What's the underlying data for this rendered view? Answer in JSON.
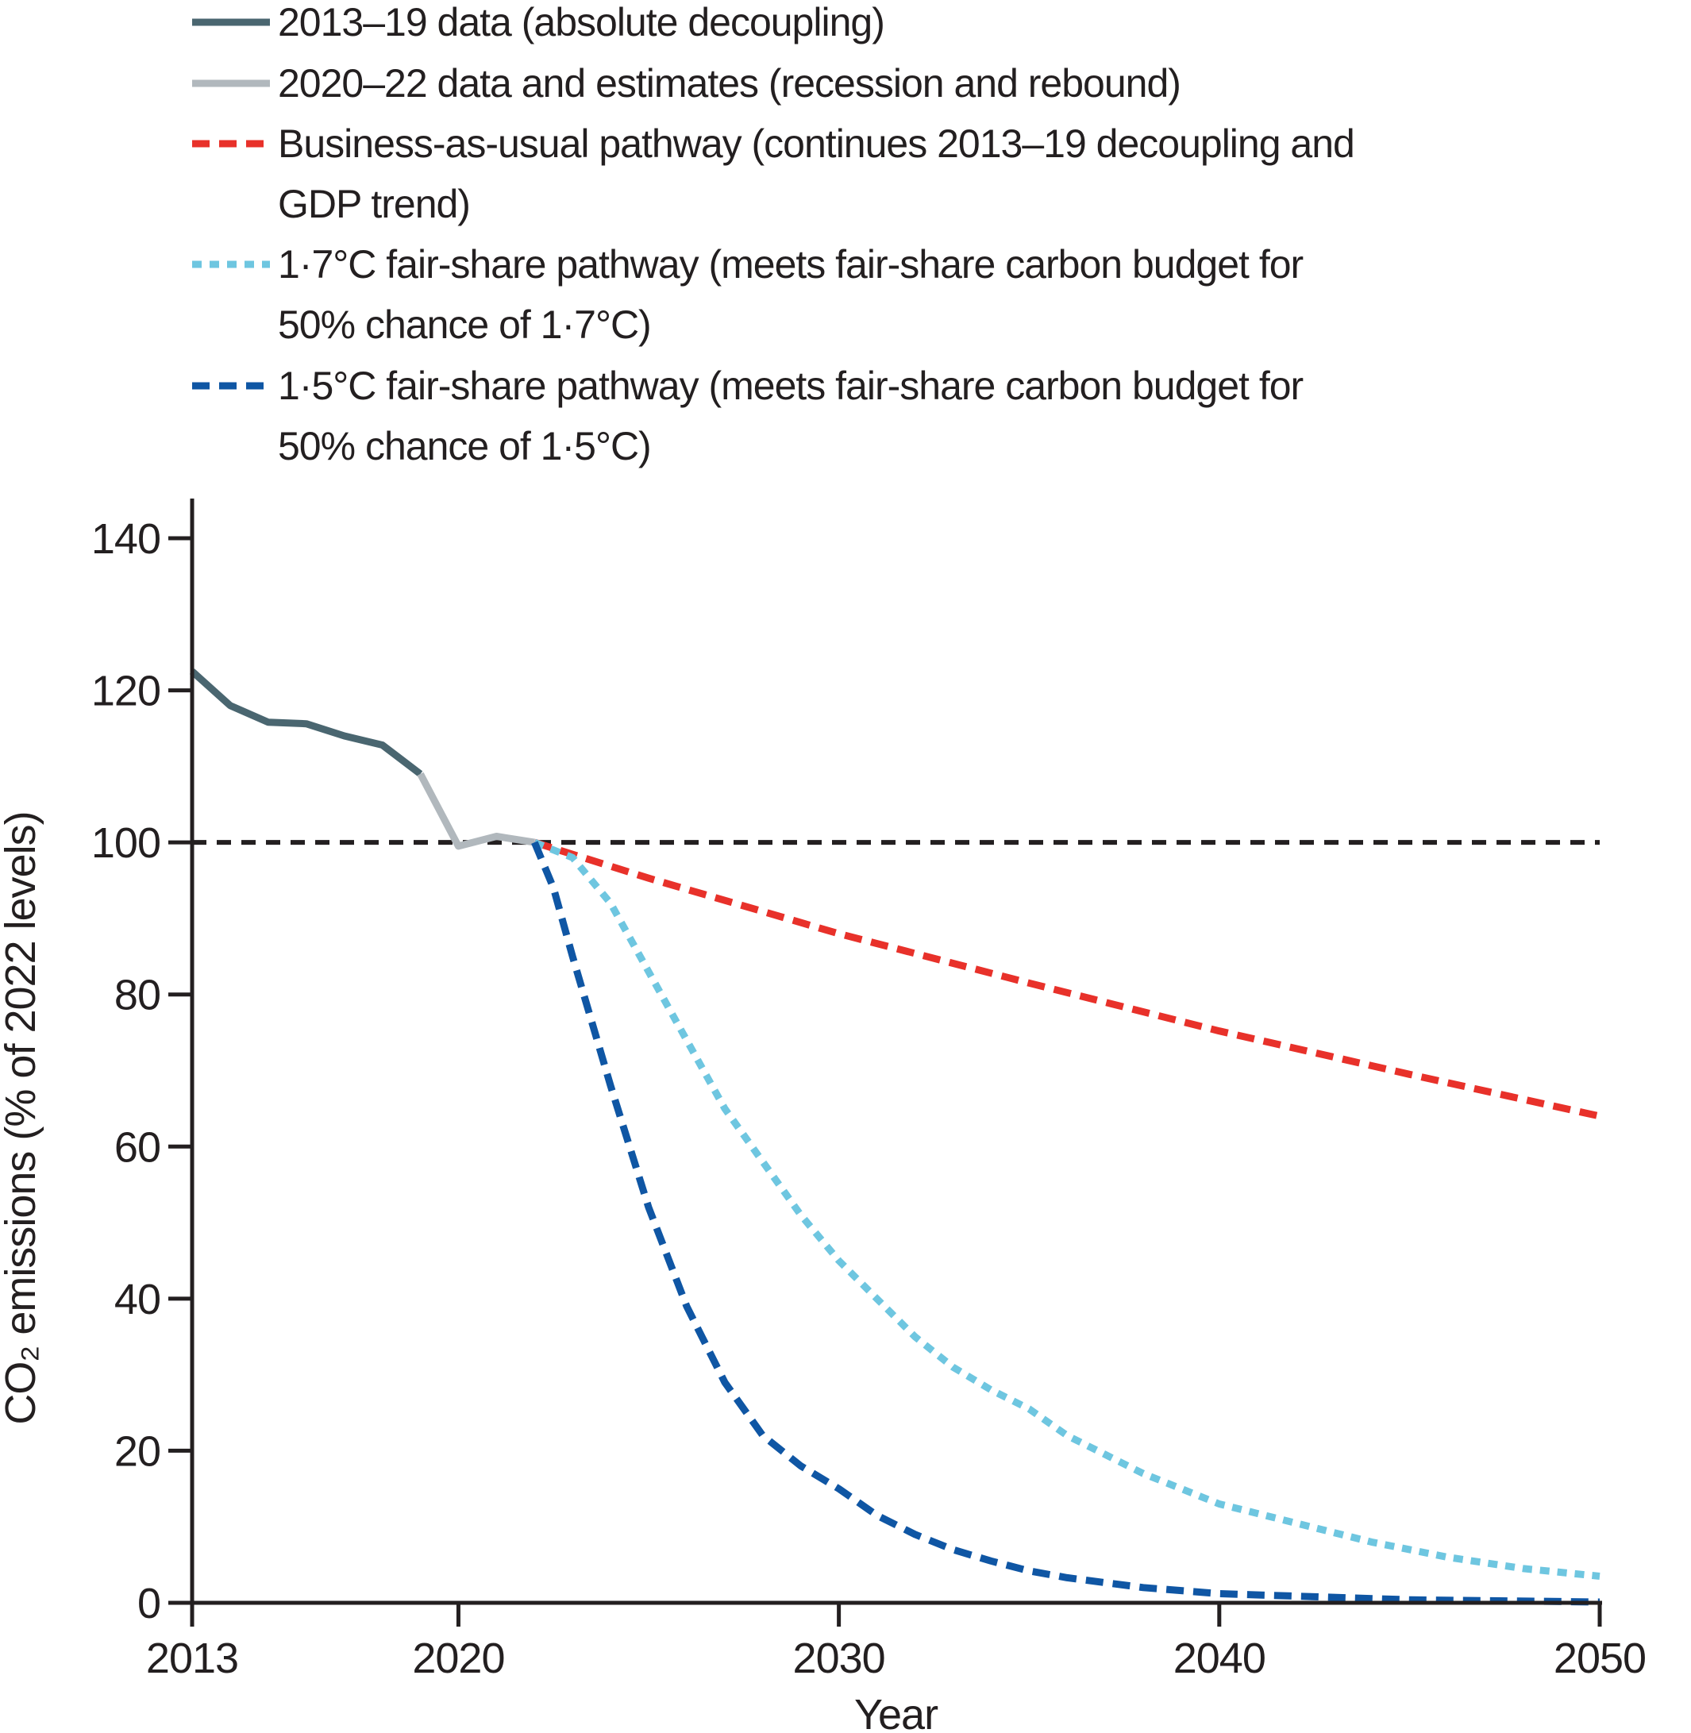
{
  "chart_data": {
    "type": "line",
    "xlabel": "Year",
    "ylabel": "CO₂ emissions (% of 2022 levels)",
    "xlim": [
      2013,
      2050
    ],
    "ylim": [
      0,
      140
    ],
    "xticks": [
      2013,
      2020,
      2030,
      2040,
      2050
    ],
    "yticks": [
      0,
      20,
      40,
      60,
      80,
      100,
      120,
      140
    ],
    "reference_line": {
      "y": 100,
      "color": "#231f20",
      "style": "dashed"
    },
    "legend_position": "top",
    "series": [
      {
        "name": "2013–19 data (absolute decoupling)",
        "label_lines": [
          "2013–19 data (absolute decoupling)"
        ],
        "color": "#4a6670",
        "style": "solid",
        "x": [
          2013,
          2014,
          2015,
          2016,
          2017,
          2018,
          2019
        ],
        "y": [
          122.5,
          118,
          115.8,
          115.6,
          114,
          112.8,
          109
        ]
      },
      {
        "name": "2020–22 data and estimates (recession and rebound)",
        "label_lines": [
          "2020–22 data and estimates (recession and rebound)"
        ],
        "color": "#b1b8bd",
        "style": "solid",
        "x": [
          2019,
          2020,
          2021,
          2022
        ],
        "y": [
          109,
          99.5,
          100.8,
          100
        ]
      },
      {
        "name": "Business-as-usual pathway (continues 2013–19 decoupling and GDP trend)",
        "label_lines": [
          "Business-as-usual pathway (continues 2013–19 decoupling and",
          "GDP trend)"
        ],
        "color": "#e8312a",
        "style": "dashed",
        "x": [
          2022,
          2025,
          2030,
          2035,
          2040,
          2045,
          2050
        ],
        "y": [
          100,
          95.3,
          88,
          81.5,
          75.2,
          69.5,
          64
        ]
      },
      {
        "name": "1·7°C fair-share pathway (meets fair-share carbon budget for 50% chance of 1·7°C)",
        "label_lines": [
          "1·7°C fair-share pathway (meets fair-share carbon budget for",
          "50% chance of 1·7°C)"
        ],
        "color": "#6ec6e0",
        "style": "dotted",
        "x": [
          2022,
          2023,
          2024,
          2025,
          2026,
          2027,
          2028,
          2029,
          2030,
          2031,
          2032,
          2033,
          2034,
          2035,
          2036,
          2037,
          2038,
          2039,
          2040,
          2042,
          2044,
          2046,
          2048,
          2050
        ],
        "y": [
          100,
          98,
          92,
          83,
          74,
          65,
          58,
          51,
          45,
          40,
          35,
          31,
          28,
          25.5,
          22,
          19.5,
          17,
          15,
          13,
          10.5,
          8,
          6,
          4.5,
          3.5
        ]
      },
      {
        "name": "1·5°C fair-share pathway (meets fair-share carbon budget for 50% chance of 1·5°C)",
        "label_lines": [
          "1·5°C fair-share pathway (meets fair-share carbon budget for",
          "50% chance of 1·5°C)"
        ],
        "color": "#0f56a4",
        "style": "dashed",
        "x": [
          2022,
          2022.5,
          2023,
          2024,
          2025,
          2026,
          2027,
          2028,
          2029,
          2030,
          2031,
          2032,
          2033,
          2034,
          2035,
          2036,
          2038,
          2040,
          2045,
          2050
        ],
        "y": [
          100,
          94,
          85,
          68,
          52,
          39,
          29,
          22,
          18,
          15,
          11.5,
          9,
          7,
          5.5,
          4.2,
          3.3,
          2,
          1.2,
          0.4,
          0.1
        ]
      }
    ]
  }
}
